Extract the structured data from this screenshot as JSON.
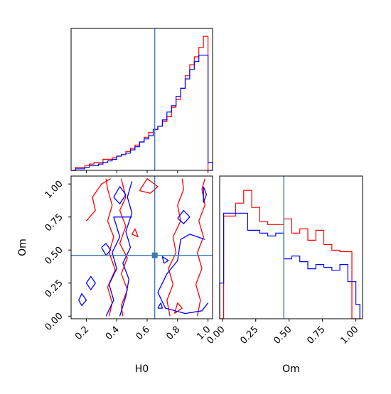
{
  "colors": {
    "series_red": "#ff0000",
    "series_blue": "#0000ff",
    "truth": "#3a78b5"
  },
  "chart_data": [
    {
      "type": "histogram",
      "panel": "H0 marginal",
      "grid": false,
      "xlim": [
        0.1,
        1.03
      ],
      "truth_x": 0.65,
      "bin_edges": [
        0.1,
        0.13,
        0.16,
        0.19,
        0.22,
        0.25,
        0.28,
        0.31,
        0.34,
        0.37,
        0.4,
        0.43,
        0.46,
        0.49,
        0.52,
        0.55,
        0.58,
        0.61,
        0.64,
        0.67,
        0.7,
        0.73,
        0.76,
        0.79,
        0.82,
        0.85,
        0.88,
        0.91,
        0.94,
        0.97,
        1.0,
        1.03
      ],
      "series": [
        {
          "color": "red",
          "values": [
            0.0,
            0.02,
            0.02,
            0.03,
            0.04,
            0.05,
            0.05,
            0.07,
            0.07,
            0.08,
            0.09,
            0.1,
            0.12,
            0.14,
            0.16,
            0.18,
            0.21,
            0.24,
            0.26,
            0.28,
            0.31,
            0.34,
            0.4,
            0.45,
            0.52,
            0.6,
            0.67,
            0.72,
            0.78,
            0.85,
            0.0
          ]
        },
        {
          "color": "blue",
          "values": [
            0.0,
            0.01,
            0.01,
            0.02,
            0.03,
            0.03,
            0.04,
            0.05,
            0.06,
            0.07,
            0.09,
            0.1,
            0.11,
            0.13,
            0.15,
            0.18,
            0.2,
            0.22,
            0.26,
            0.28,
            0.32,
            0.37,
            0.41,
            0.47,
            0.52,
            0.58,
            0.64,
            0.69,
            0.73,
            0.73,
            0.05
          ]
        }
      ]
    },
    {
      "type": "contour",
      "panel": "H0 vs Om joint",
      "grid": false,
      "xlabel": "H0",
      "ylabel": "Om",
      "xlim": [
        0.1,
        1.03
      ],
      "ylim": [
        -0.02,
        1.06
      ],
      "xticks": [
        "0.2",
        "0.4",
        "0.6",
        "0.8",
        "1.0"
      ],
      "xtick_values": [
        0.2,
        0.4,
        0.6,
        0.8,
        1.0
      ],
      "yticks": [
        "0.00",
        "0.25",
        "0.50",
        "0.75",
        "1.00"
      ],
      "ytick_values": [
        0.0,
        0.25,
        0.5,
        0.75,
        1.0
      ],
      "truth": [
        0.65,
        0.46
      ],
      "series": [
        {
          "color": "red",
          "contours": [
            [
              [
                0.35,
                0.0
              ],
              [
                0.37,
                0.1
              ],
              [
                0.34,
                0.22
              ],
              [
                0.39,
                0.35
              ],
              [
                0.35,
                0.48
              ],
              [
                0.38,
                0.6
              ],
              [
                0.34,
                0.72
              ],
              [
                0.37,
                0.84
              ],
              [
                0.34,
                0.96
              ],
              [
                0.33,
                1.04
              ]
            ],
            [
              [
                0.44,
                0.0
              ],
              [
                0.43,
                0.08
              ],
              [
                0.47,
                0.2
              ],
              [
                0.43,
                0.32
              ],
              [
                0.47,
                0.44
              ],
              [
                0.42,
                0.55
              ],
              [
                0.46,
                0.68
              ],
              [
                0.42,
                0.8
              ],
              [
                0.46,
                0.9
              ],
              [
                0.43,
                1.04
              ]
            ],
            [
              [
                0.75,
                0.0
              ],
              [
                0.73,
                0.12
              ],
              [
                0.77,
                0.24
              ],
              [
                0.74,
                0.36
              ],
              [
                0.79,
                0.48
              ],
              [
                0.77,
                0.6
              ],
              [
                0.82,
                0.72
              ],
              [
                0.8,
                0.84
              ],
              [
                0.84,
                0.96
              ],
              [
                0.83,
                1.04
              ]
            ],
            [
              [
                0.93,
                0.0
              ],
              [
                0.95,
                0.12
              ],
              [
                0.92,
                0.24
              ],
              [
                0.96,
                0.36
              ],
              [
                0.93,
                0.48
              ],
              [
                0.97,
                0.6
              ],
              [
                0.94,
                0.72
              ],
              [
                0.98,
                0.84
              ],
              [
                0.96,
                0.96
              ],
              [
                0.98,
                1.04
              ]
            ],
            [
              [
                0.2,
                0.72
              ],
              [
                0.26,
                0.8
              ],
              [
                0.24,
                0.9
              ],
              [
                0.3,
                1.0
              ],
              [
                0.36,
                1.04
              ]
            ],
            [
              [
                0.55,
                0.95
              ],
              [
                0.6,
                1.04
              ],
              [
                0.67,
                0.98
              ],
              [
                0.62,
                0.93
              ],
              [
                0.55,
                0.95
              ]
            ],
            [
              [
                0.78,
                0.02
              ],
              [
                0.8,
                0.1
              ],
              [
                0.83,
                0.06
              ],
              [
                0.78,
                0.02
              ]
            ],
            [
              [
                0.5,
                0.62
              ],
              [
                0.52,
                0.66
              ],
              [
                0.54,
                0.6
              ],
              [
                0.5,
                0.62
              ]
            ]
          ]
        },
        {
          "color": "blue",
          "contours": [
            [
              [
                0.33,
                0.0
              ],
              [
                0.38,
                0.12
              ],
              [
                0.35,
                0.24
              ],
              [
                0.4,
                0.36
              ],
              [
                0.37,
                0.48
              ],
              [
                0.42,
                0.6
              ],
              [
                0.38,
                0.75
              ],
              [
                0.5,
                0.75
              ]
            ],
            [
              [
                0.42,
                0.0
              ],
              [
                0.46,
                0.15
              ],
              [
                0.48,
                0.28
              ],
              [
                0.44,
                0.4
              ],
              [
                0.49,
                0.52
              ],
              [
                0.46,
                0.64
              ],
              [
                0.5,
                0.78
              ],
              [
                0.47,
                0.9
              ],
              [
                0.5,
                1.02
              ]
            ],
            [
              [
                0.98,
                0.58
              ],
              [
                0.88,
                0.62
              ],
              [
                0.82,
                0.58
              ],
              [
                0.8,
                0.42
              ],
              [
                0.73,
                0.32
              ],
              [
                0.67,
                0.18
              ],
              [
                0.72,
                0.06
              ],
              [
                0.85,
                0.02
              ],
              [
                0.96,
                0.04
              ],
              [
                1.0,
                0.1
              ]
            ],
            [
              [
                0.97,
                0.98
              ],
              [
                0.99,
                0.92
              ],
              [
                0.97,
                0.86
              ],
              [
                0.97,
                0.98
              ]
            ],
            [
              [
                0.38,
                0.9
              ],
              [
                0.42,
                0.98
              ],
              [
                0.46,
                0.92
              ],
              [
                0.42,
                0.85
              ],
              [
                0.38,
                0.9
              ]
            ],
            [
              [
                0.3,
                0.52
              ],
              [
                0.33,
                0.55
              ],
              [
                0.36,
                0.5
              ],
              [
                0.33,
                0.46
              ],
              [
                0.3,
                0.52
              ]
            ],
            [
              [
                0.15,
                0.12
              ],
              [
                0.17,
                0.17
              ],
              [
                0.2,
                0.12
              ],
              [
                0.17,
                0.08
              ],
              [
                0.15,
                0.12
              ]
            ],
            [
              [
                0.2,
                0.25
              ],
              [
                0.23,
                0.3
              ],
              [
                0.26,
                0.25
              ],
              [
                0.23,
                0.2
              ],
              [
                0.2,
                0.25
              ]
            ],
            [
              [
                0.71,
                0.4
              ],
              [
                0.7,
                0.45
              ],
              [
                0.74,
                0.42
              ],
              [
                0.71,
                0.4
              ]
            ],
            [
              [
                0.67,
                0.06
              ],
              [
                0.69,
                0.1
              ],
              [
                0.7,
                0.06
              ],
              [
                0.67,
                0.06
              ]
            ],
            [
              [
                0.8,
                0.74
              ],
              [
                0.84,
                0.8
              ],
              [
                0.88,
                0.75
              ],
              [
                0.84,
                0.7
              ],
              [
                0.8,
                0.74
              ]
            ]
          ]
        }
      ]
    },
    {
      "type": "histogram",
      "panel": "Om marginal",
      "grid": false,
      "xlabel": "Om",
      "xlim": [
        -0.02,
        1.05
      ],
      "xticks": [
        "0.00",
        "0.25",
        "0.50",
        "0.75",
        "1.00"
      ],
      "xtick_values": [
        0.0,
        0.25,
        0.5,
        0.75,
        1.0
      ],
      "truth_x": 0.46,
      "bin_edges": [
        -0.02,
        0.01,
        0.04,
        0.07,
        0.1,
        0.13,
        0.16,
        0.19,
        0.22,
        0.25,
        0.28,
        0.31,
        0.34,
        0.37,
        0.4,
        0.43,
        0.46,
        0.49,
        0.52,
        0.55,
        0.58,
        0.61,
        0.64,
        0.67,
        0.7,
        0.73,
        0.76,
        0.79,
        0.82,
        0.85,
        0.88,
        0.91,
        0.94,
        0.97,
        1.0,
        1.03
      ],
      "series": [
        {
          "color": "red",
          "values": [
            0.0,
            0.72,
            0.72,
            0.72,
            0.81,
            0.81,
            0.9,
            0.9,
            0.78,
            0.78,
            0.68,
            0.68,
            0.66,
            0.66,
            0.66,
            0.66,
            0.7,
            0.7,
            0.6,
            0.6,
            0.63,
            0.63,
            0.55,
            0.55,
            0.62,
            0.62,
            0.52,
            0.52,
            0.48,
            0.48,
            0.47,
            0.47,
            0.47,
            0.0,
            0.0
          ]
        },
        {
          "color": "blue",
          "values": [
            0.25,
            0.74,
            0.74,
            0.74,
            0.74,
            0.74,
            0.74,
            0.62,
            0.62,
            0.62,
            0.6,
            0.6,
            0.58,
            0.58,
            0.6,
            0.6,
            0.42,
            0.42,
            0.44,
            0.44,
            0.4,
            0.4,
            0.35,
            0.35,
            0.38,
            0.38,
            0.36,
            0.36,
            0.34,
            0.34,
            0.38,
            0.38,
            0.26,
            0.26,
            0.1
          ]
        }
      ]
    }
  ]
}
